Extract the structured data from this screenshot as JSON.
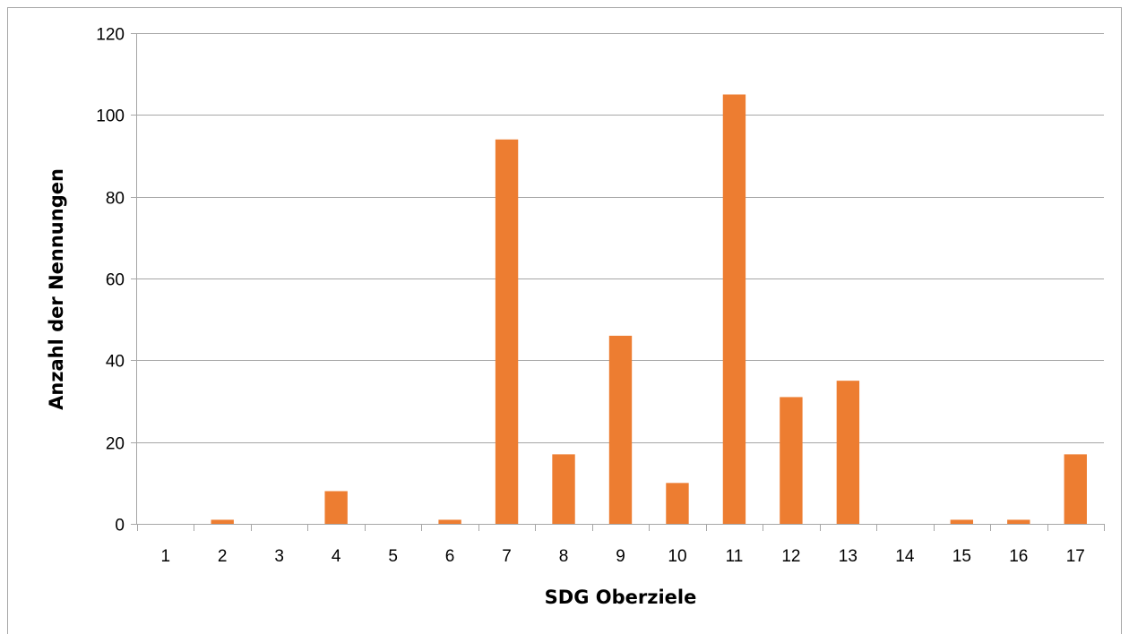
{
  "chart_data": {
    "type": "bar",
    "categories": [
      "1",
      "2",
      "3",
      "4",
      "5",
      "6",
      "7",
      "8",
      "9",
      "10",
      "11",
      "12",
      "13",
      "14",
      "15",
      "16",
      "17"
    ],
    "values": [
      0,
      1,
      0,
      8,
      0,
      1,
      94,
      17,
      46,
      10,
      105,
      31,
      35,
      0,
      1,
      1,
      17
    ],
    "title": "",
    "xlabel": "SDG Oberziele",
    "ylabel": "Anzahl der Nennungen",
    "ylim": [
      0,
      120
    ],
    "yticks": [
      0,
      20,
      40,
      60,
      80,
      100,
      120
    ],
    "grid": true,
    "legend": "none",
    "colors": {
      "bar": "#ED7D31",
      "grid": "#A6A6A6",
      "axis": "#A6A6A6"
    }
  }
}
